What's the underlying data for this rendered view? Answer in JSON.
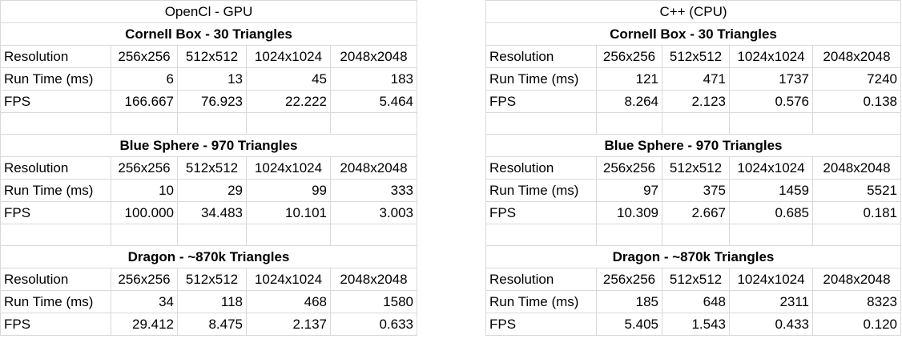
{
  "left": {
    "header": "OpenCl - GPU",
    "sections": [
      {
        "title": "Cornell Box - 30 Triangles",
        "rows": [
          {
            "label": "Resolution",
            "values": [
              "256x256",
              "512x512",
              "1024x1024",
              "2048x2048"
            ]
          },
          {
            "label": "Run Time (ms)",
            "values": [
              "6",
              "13",
              "45",
              "183"
            ]
          },
          {
            "label": "FPS",
            "values": [
              "166.667",
              "76.923",
              "22.222",
              "5.464"
            ]
          }
        ]
      },
      {
        "title": "Blue Sphere - 970 Triangles",
        "rows": [
          {
            "label": "Resolution",
            "values": [
              "256x256",
              "512x512",
              "1024x1024",
              "2048x2048"
            ]
          },
          {
            "label": "Run Time (ms)",
            "values": [
              "10",
              "29",
              "99",
              "333"
            ]
          },
          {
            "label": "FPS",
            "values": [
              "100.000",
              "34.483",
              "10.101",
              "3.003"
            ]
          }
        ]
      },
      {
        "title": "Dragon - ~870k Triangles",
        "rows": [
          {
            "label": "Resolution",
            "values": [
              "256x256",
              "512x512",
              "1024x1024",
              "2048x2048"
            ]
          },
          {
            "label": "Run Time (ms)",
            "values": [
              "34",
              "118",
              "468",
              "1580"
            ]
          },
          {
            "label": "FPS",
            "values": [
              "29.412",
              "8.475",
              "2.137",
              "0.633"
            ]
          }
        ]
      }
    ]
  },
  "right": {
    "header": "C++ (CPU)",
    "sections": [
      {
        "title": "Cornell Box - 30 Triangles",
        "rows": [
          {
            "label": "Resolution",
            "values": [
              "256x256",
              "512x512",
              "1024x1024",
              "2048x2048"
            ]
          },
          {
            "label": "Run Time (ms)",
            "values": [
              "121",
              "471",
              "1737",
              "7240"
            ]
          },
          {
            "label": "FPS",
            "values": [
              "8.264",
              "2.123",
              "0.576",
              "0.138"
            ]
          }
        ]
      },
      {
        "title": "Blue Sphere - 970 Triangles",
        "rows": [
          {
            "label": "Resolution",
            "values": [
              "256x256",
              "512x512",
              "1024x1024",
              "2048x2048"
            ]
          },
          {
            "label": "Run Time (ms)",
            "values": [
              "97",
              "375",
              "1459",
              "5521"
            ]
          },
          {
            "label": "FPS",
            "values": [
              "10.309",
              "2.667",
              "0.685",
              "0.181"
            ]
          }
        ]
      },
      {
        "title": "Dragon - ~870k Triangles",
        "rows": [
          {
            "label": "Resolution",
            "values": [
              "256x256",
              "512x512",
              "1024x1024",
              "2048x2048"
            ]
          },
          {
            "label": "Run Time (ms)",
            "values": [
              "185",
              "648",
              "2311",
              "8323"
            ]
          },
          {
            "label": "FPS",
            "values": [
              "5.405",
              "1.543",
              "0.433",
              "0.120"
            ]
          }
        ]
      }
    ]
  }
}
